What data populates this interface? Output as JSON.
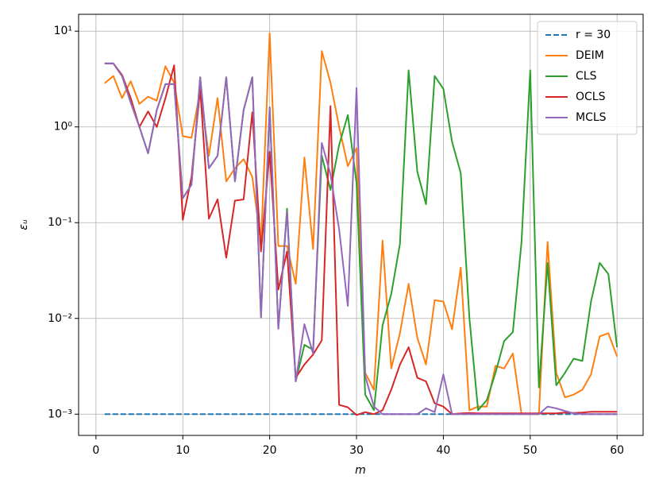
{
  "chart_data": {
    "type": "line",
    "xlabel": "m",
    "ylabel": "εᵤ",
    "log_y": true,
    "grid": true,
    "legend": "upper right",
    "xlim": [
      -2,
      63
    ],
    "xticks": [
      0,
      10,
      20,
      30,
      40,
      50,
      60
    ],
    "ylim": [
      0.0006,
      15
    ],
    "yticks": [
      {
        "value": 0.001,
        "label": "10⁻³"
      },
      {
        "value": 0.01,
        "label": "10⁻²"
      },
      {
        "value": 0.1,
        "label": "10⁻¹"
      },
      {
        "value": 1,
        "label": "10⁰"
      },
      {
        "value": 10,
        "label": "10¹"
      }
    ],
    "x": [
      1,
      2,
      3,
      4,
      5,
      6,
      7,
      8,
      9,
      10,
      11,
      12,
      13,
      14,
      15,
      16,
      17,
      18,
      19,
      20,
      21,
      22,
      23,
      24,
      25,
      26,
      27,
      28,
      29,
      30,
      31,
      32,
      33,
      34,
      35,
      36,
      37,
      38,
      39,
      40,
      41,
      42,
      43,
      44,
      45,
      46,
      47,
      48,
      49,
      50,
      51,
      52,
      53,
      54,
      55,
      56,
      57,
      58,
      59,
      60
    ],
    "series": [
      {
        "name": "r = 30",
        "color": "#1f77b4",
        "dashed": true,
        "values": [
          0.001,
          0.001,
          0.001,
          0.001,
          0.001,
          0.001,
          0.001,
          0.001,
          0.001,
          0.001,
          0.001,
          0.001,
          0.001,
          0.001,
          0.001,
          0.001,
          0.001,
          0.001,
          0.001,
          0.001,
          0.001,
          0.001,
          0.001,
          0.001,
          0.001,
          0.001,
          0.001,
          0.001,
          0.001,
          0.001,
          0.001,
          0.001,
          0.001,
          0.001,
          0.001,
          0.001,
          0.001,
          0.001,
          0.001,
          0.001,
          0.001,
          0.001,
          0.001,
          0.001,
          0.001,
          0.001,
          0.001,
          0.001,
          0.001,
          0.001,
          0.001,
          0.001,
          0.001,
          0.001,
          0.001,
          0.001,
          0.001,
          0.001,
          0.001,
          0.001
        ]
      },
      {
        "name": "DEIM",
        "color": "#ff7f0e",
        "values": [
          2.86,
          3.4,
          2.0,
          3.0,
          1.74,
          2.07,
          1.88,
          4.3,
          2.9,
          0.8,
          0.77,
          2.4,
          0.5,
          2.0,
          0.27,
          0.37,
          0.46,
          0.3,
          0.06,
          9.5,
          0.057,
          0.057,
          0.023,
          0.48,
          0.053,
          6.2,
          2.9,
          1.0,
          0.39,
          0.6,
          0.0027,
          0.0018,
          0.065,
          0.003,
          0.007,
          0.023,
          0.0063,
          0.0033,
          0.0155,
          0.015,
          0.0077,
          0.034,
          0.0011,
          0.0012,
          0.0012,
          0.0032,
          0.003,
          0.0043,
          0.001,
          0.001,
          0.001,
          0.063,
          0.0027,
          0.0015,
          0.0016,
          0.0018,
          0.0026,
          0.0065,
          0.007,
          0.004
        ]
      },
      {
        "name": "CLS",
        "color": "#2ca02c",
        "values": [
          4.6,
          4.6,
          3.4,
          1.8,
          1.0,
          0.53,
          1.5,
          2.8,
          2.8,
          0.18,
          0.25,
          3.3,
          0.37,
          0.5,
          3.3,
          0.27,
          1.5,
          3.3,
          0.0103,
          1.6,
          0.0078,
          0.14,
          0.0022,
          0.0053,
          0.0047,
          0.5,
          0.22,
          0.65,
          1.33,
          0.26,
          0.0016,
          0.0011,
          0.0085,
          0.018,
          0.06,
          3.9,
          0.34,
          0.156,
          3.4,
          2.5,
          0.7,
          0.33,
          0.01,
          0.0011,
          0.0014,
          0.0027,
          0.0058,
          0.0072,
          0.063,
          3.9,
          0.0019,
          0.038,
          0.002,
          0.0027,
          0.0038,
          0.0036,
          0.015,
          0.038,
          0.029,
          0.005
        ]
      },
      {
        "name": "OCLS",
        "color": "#d62728",
        "values": [
          4.6,
          4.6,
          3.5,
          2.0,
          1.0,
          1.45,
          1.0,
          2.0,
          4.4,
          0.107,
          0.3,
          2.5,
          0.11,
          0.175,
          0.043,
          0.17,
          0.175,
          1.42,
          0.05,
          0.55,
          0.02,
          0.05,
          0.0024,
          0.0033,
          0.0042,
          0.0059,
          1.65,
          0.00125,
          0.00118,
          0.00098,
          0.00105,
          0.001,
          0.0011,
          0.0018,
          0.0033,
          0.005,
          0.0024,
          0.0022,
          0.0013,
          0.0012,
          0.001,
          0.00102,
          0.00103,
          0.00102,
          0.00102,
          0.00102,
          0.00102,
          0.00102,
          0.00102,
          0.00102,
          0.00102,
          0.00102,
          0.00102,
          0.00104,
          0.00103,
          0.00104,
          0.00106,
          0.00106,
          0.00106,
          0.00106
        ]
      },
      {
        "name": "MCLS",
        "color": "#9467bd",
        "values": [
          4.6,
          4.6,
          3.4,
          1.8,
          1.0,
          0.53,
          1.5,
          2.8,
          2.8,
          0.18,
          0.25,
          3.3,
          0.37,
          0.5,
          3.3,
          0.27,
          1.5,
          3.3,
          0.0103,
          1.6,
          0.0078,
          0.13,
          0.0022,
          0.0087,
          0.0043,
          0.68,
          0.32,
          0.085,
          0.0135,
          2.55,
          0.0025,
          0.0012,
          0.001,
          0.001,
          0.001,
          0.001,
          0.001,
          0.00115,
          0.00105,
          0.0026,
          0.001,
          0.001,
          0.001,
          0.001,
          0.001,
          0.001,
          0.001,
          0.001,
          0.001,
          0.001,
          0.001,
          0.0012,
          0.00115,
          0.00108,
          0.00102,
          0.001,
          0.001,
          0.001,
          0.001,
          0.001
        ]
      }
    ]
  }
}
